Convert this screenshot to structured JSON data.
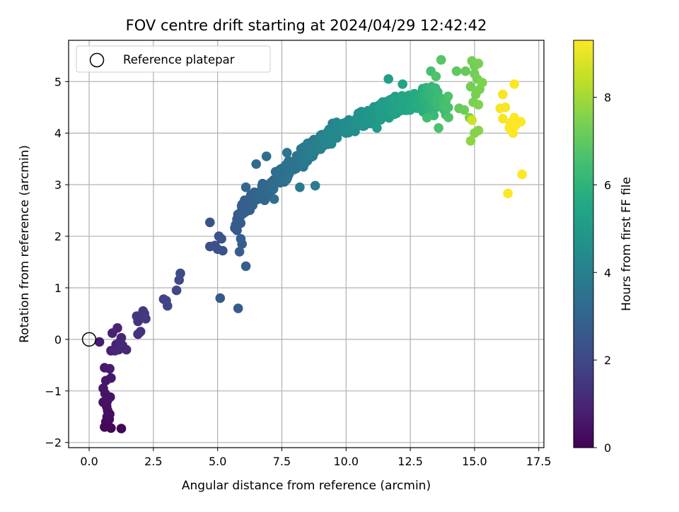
{
  "chart_data": {
    "type": "scatter",
    "title": "FOV centre drift starting at 2024/04/29 12:42:42",
    "xlabel": "Angular distance from reference (arcmin)",
    "ylabel": "Rotation from reference (arcmin)",
    "xlim": [
      -0.8,
      17.7
    ],
    "ylim": [
      -2.1,
      5.8
    ],
    "x_ticks": [
      0.0,
      2.5,
      5.0,
      7.5,
      10.0,
      12.5,
      15.0,
      17.5
    ],
    "x_tick_labels": [
      "0.0",
      "2.5",
      "5.0",
      "7.5",
      "10.0",
      "12.5",
      "15.0",
      "17.5"
    ],
    "y_ticks": [
      -2,
      -1,
      0,
      1,
      2,
      3,
      4,
      5
    ],
    "y_tick_labels": [
      "−2",
      "−1",
      "0",
      "1",
      "2",
      "3",
      "4",
      "5"
    ],
    "grid": true,
    "legend": {
      "position": "top-left",
      "entries": [
        "Reference platepar"
      ]
    },
    "reference_point": {
      "x": 0,
      "y": 0
    },
    "colorbar": {
      "label": "Hours from first FF file",
      "colormap": "viridis",
      "range": [
        0,
        9.3
      ],
      "ticks": [
        0,
        2,
        4,
        6,
        8
      ],
      "tick_labels": [
        "0",
        "2",
        "4",
        "6",
        "8"
      ]
    },
    "points": [
      {
        "x": 0.85,
        "y": -1.72,
        "h": 0.1
      },
      {
        "x": 1.25,
        "y": -1.73,
        "h": 0.1
      },
      {
        "x": 0.6,
        "y": -1.7,
        "h": 0.15
      },
      {
        "x": 0.75,
        "y": -1.68,
        "h": 0.2
      },
      {
        "x": 0.65,
        "y": -1.6,
        "h": 0.2
      },
      {
        "x": 0.78,
        "y": -1.55,
        "h": 0.25
      },
      {
        "x": 0.7,
        "y": -1.5,
        "h": 0.3
      },
      {
        "x": 0.8,
        "y": -1.45,
        "h": 0.3
      },
      {
        "x": 0.72,
        "y": -1.38,
        "h": 0.35
      },
      {
        "x": 0.68,
        "y": -1.3,
        "h": 0.4
      },
      {
        "x": 0.55,
        "y": -1.22,
        "h": 0.45
      },
      {
        "x": 0.7,
        "y": -1.2,
        "h": 0.45
      },
      {
        "x": 0.82,
        "y": -1.12,
        "h": 0.5
      },
      {
        "x": 0.62,
        "y": -1.05,
        "h": 0.5
      },
      {
        "x": 0.55,
        "y": -0.95,
        "h": 0.55
      },
      {
        "x": 0.65,
        "y": -0.8,
        "h": 0.6
      },
      {
        "x": 0.85,
        "y": -0.75,
        "h": 0.6
      },
      {
        "x": 0.6,
        "y": -0.55,
        "h": 0.65
      },
      {
        "x": 0.8,
        "y": -0.57,
        "h": 0.7
      },
      {
        "x": 0.4,
        "y": -0.05,
        "h": 0.75
      },
      {
        "x": 0.85,
        "y": -0.22,
        "h": 0.8
      },
      {
        "x": 1.05,
        "y": -0.1,
        "h": 0.85
      },
      {
        "x": 0.9,
        "y": 0.12,
        "h": 0.85
      },
      {
        "x": 1.1,
        "y": 0.22,
        "h": 0.9
      },
      {
        "x": 1.25,
        "y": 0.03,
        "h": 0.95
      },
      {
        "x": 1.15,
        "y": -0.2,
        "h": 1.0
      },
      {
        "x": 1.45,
        "y": -0.2,
        "h": 1.05
      },
      {
        "x": 1.0,
        "y": -0.22,
        "h": 1.0
      },
      {
        "x": 1.3,
        "y": -0.12,
        "h": 1.05
      },
      {
        "x": 1.2,
        "y": -0.05,
        "h": 1.0
      },
      {
        "x": 1.9,
        "y": 0.1,
        "h": 1.3
      },
      {
        "x": 2.0,
        "y": 0.15,
        "h": 1.35
      },
      {
        "x": 1.9,
        "y": 0.35,
        "h": 1.4
      },
      {
        "x": 1.85,
        "y": 0.45,
        "h": 1.45
      },
      {
        "x": 2.1,
        "y": 0.55,
        "h": 1.5
      },
      {
        "x": 2.2,
        "y": 0.4,
        "h": 1.5
      },
      {
        "x": 2.15,
        "y": 0.5,
        "h": 1.55
      },
      {
        "x": 2.9,
        "y": 0.78,
        "h": 1.8
      },
      {
        "x": 3.05,
        "y": 0.65,
        "h": 1.85
      },
      {
        "x": 3.0,
        "y": 0.75,
        "h": 1.85
      },
      {
        "x": 3.4,
        "y": 0.95,
        "h": 1.95
      },
      {
        "x": 3.5,
        "y": 1.15,
        "h": 2.0
      },
      {
        "x": 3.55,
        "y": 1.28,
        "h": 2.05
      },
      {
        "x": 4.7,
        "y": 1.8,
        "h": 2.2
      },
      {
        "x": 4.9,
        "y": 1.82,
        "h": 2.25
      },
      {
        "x": 5.0,
        "y": 1.75,
        "h": 2.3
      },
      {
        "x": 5.2,
        "y": 1.72,
        "h": 2.35
      },
      {
        "x": 5.05,
        "y": 2.0,
        "h": 2.35
      },
      {
        "x": 5.15,
        "y": 1.95,
        "h": 2.4
      },
      {
        "x": 4.7,
        "y": 2.27,
        "h": 2.3
      },
      {
        "x": 5.1,
        "y": 0.8,
        "h": 2.6
      },
      {
        "x": 5.8,
        "y": 0.6,
        "h": 2.7
      },
      {
        "x": 6.1,
        "y": 1.42,
        "h": 2.8
      },
      {
        "x": 5.85,
        "y": 1.7,
        "h": 2.75
      },
      {
        "x": 5.95,
        "y": 1.85,
        "h": 2.8
      },
      {
        "x": 5.9,
        "y": 1.95,
        "h": 2.8
      }
    ],
    "bands": [
      {
        "x0": 5.6,
        "x1": 7.2,
        "h0": 2.5,
        "h1": 3.2,
        "n": 70,
        "curve": [
          [
            5.5,
            2.05
          ],
          [
            6.0,
            2.5
          ],
          [
            6.5,
            2.75
          ],
          [
            7.0,
            2.95
          ],
          [
            7.5,
            3.2
          ]
        ],
        "spread": 0.22
      },
      {
        "x0": 7.0,
        "x1": 9.5,
        "h0": 3.1,
        "h1": 4.2,
        "n": 130,
        "curve": [
          [
            7.0,
            2.95
          ],
          [
            7.5,
            3.2
          ],
          [
            8.0,
            3.4
          ],
          [
            8.5,
            3.6
          ],
          [
            9.0,
            3.85
          ],
          [
            9.5,
            4.0
          ]
        ],
        "spread": 0.22
      },
      {
        "x0": 9.0,
        "x1": 11.5,
        "h0": 4.0,
        "h1": 5.0,
        "n": 140,
        "curve": [
          [
            9.0,
            3.85
          ],
          [
            9.5,
            4.0
          ],
          [
            10.0,
            4.1
          ],
          [
            10.5,
            4.25
          ],
          [
            11.0,
            4.35
          ],
          [
            11.5,
            4.45
          ]
        ],
        "spread": 0.2
      },
      {
        "x0": 11.0,
        "x1": 13.0,
        "h0": 4.9,
        "h1": 5.7,
        "n": 110,
        "curve": [
          [
            11.0,
            4.35
          ],
          [
            11.5,
            4.45
          ],
          [
            12.0,
            4.55
          ],
          [
            12.5,
            4.6
          ],
          [
            13.0,
            4.62
          ]
        ],
        "spread": 0.22
      },
      {
        "x0": 12.8,
        "x1": 14.0,
        "h0": 5.6,
        "h1": 6.6,
        "n": 60,
        "curve": [
          [
            12.8,
            4.6
          ],
          [
            13.2,
            4.65
          ],
          [
            13.6,
            4.6
          ],
          [
            14.0,
            4.55
          ]
        ],
        "spread": 0.3
      }
    ],
    "extra_points": [
      {
        "x": 6.5,
        "y": 3.4,
        "h": 3.2
      },
      {
        "x": 6.9,
        "y": 3.55,
        "h": 3.3
      },
      {
        "x": 7.2,
        "y": 2.72,
        "h": 3.4
      },
      {
        "x": 6.1,
        "y": 2.95,
        "h": 3.0
      },
      {
        "x": 7.7,
        "y": 3.62,
        "h": 3.6
      },
      {
        "x": 8.2,
        "y": 2.95,
        "h": 3.8
      },
      {
        "x": 8.8,
        "y": 2.98,
        "h": 3.9
      },
      {
        "x": 8.5,
        "y": 3.8,
        "h": 3.8
      },
      {
        "x": 11.65,
        "y": 5.05,
        "h": 5.2
      },
      {
        "x": 12.2,
        "y": 4.95,
        "h": 5.4
      },
      {
        "x": 11.2,
        "y": 4.1,
        "h": 5.0
      },
      {
        "x": 12.5,
        "y": 4.45,
        "h": 5.6
      },
      {
        "x": 13.7,
        "y": 5.42,
        "h": 6.8
      },
      {
        "x": 13.3,
        "y": 5.2,
        "h": 6.5
      },
      {
        "x": 13.5,
        "y": 5.1,
        "h": 6.7
      },
      {
        "x": 13.15,
        "y": 4.3,
        "h": 6.4
      },
      {
        "x": 13.6,
        "y": 4.1,
        "h": 6.6
      },
      {
        "x": 14.3,
        "y": 5.2,
        "h": 7.0
      },
      {
        "x": 14.65,
        "y": 5.2,
        "h": 7.1
      },
      {
        "x": 14.4,
        "y": 4.48,
        "h": 7.1
      },
      {
        "x": 14.6,
        "y": 4.45,
        "h": 7.2
      },
      {
        "x": 14.9,
        "y": 5.4,
        "h": 7.3
      },
      {
        "x": 15.0,
        "y": 5.3,
        "h": 7.3
      },
      {
        "x": 15.15,
        "y": 5.35,
        "h": 7.4
      },
      {
        "x": 15.0,
        "y": 5.15,
        "h": 7.3
      },
      {
        "x": 15.1,
        "y": 5.05,
        "h": 7.4
      },
      {
        "x": 15.3,
        "y": 4.98,
        "h": 7.5
      },
      {
        "x": 15.2,
        "y": 4.85,
        "h": 7.4
      },
      {
        "x": 14.85,
        "y": 4.9,
        "h": 7.3
      },
      {
        "x": 15.05,
        "y": 4.75,
        "h": 7.4
      },
      {
        "x": 15.15,
        "y": 4.55,
        "h": 7.5
      },
      {
        "x": 14.95,
        "y": 4.6,
        "h": 7.4
      },
      {
        "x": 14.8,
        "y": 4.3,
        "h": 7.5
      },
      {
        "x": 15.0,
        "y": 4.0,
        "h": 7.6
      },
      {
        "x": 15.15,
        "y": 4.05,
        "h": 7.6
      },
      {
        "x": 14.85,
        "y": 3.85,
        "h": 7.7
      },
      {
        "x": 14.9,
        "y": 4.25,
        "h": 8.6
      },
      {
        "x": 16.0,
        "y": 4.48,
        "h": 9.2
      },
      {
        "x": 16.1,
        "y": 4.75,
        "h": 9.2
      },
      {
        "x": 16.55,
        "y": 4.95,
        "h": 9.3
      },
      {
        "x": 16.2,
        "y": 4.5,
        "h": 9.2
      },
      {
        "x": 16.1,
        "y": 4.28,
        "h": 9.2
      },
      {
        "x": 16.4,
        "y": 4.2,
        "h": 9.3
      },
      {
        "x": 16.55,
        "y": 4.3,
        "h": 9.3
      },
      {
        "x": 16.6,
        "y": 4.15,
        "h": 9.3
      },
      {
        "x": 16.5,
        "y": 4.0,
        "h": 9.3
      },
      {
        "x": 16.8,
        "y": 4.22,
        "h": 9.3
      },
      {
        "x": 16.35,
        "y": 4.1,
        "h": 9.3
      },
      {
        "x": 16.85,
        "y": 3.2,
        "h": 9.3
      },
      {
        "x": 16.3,
        "y": 2.83,
        "h": 9.3
      }
    ]
  }
}
